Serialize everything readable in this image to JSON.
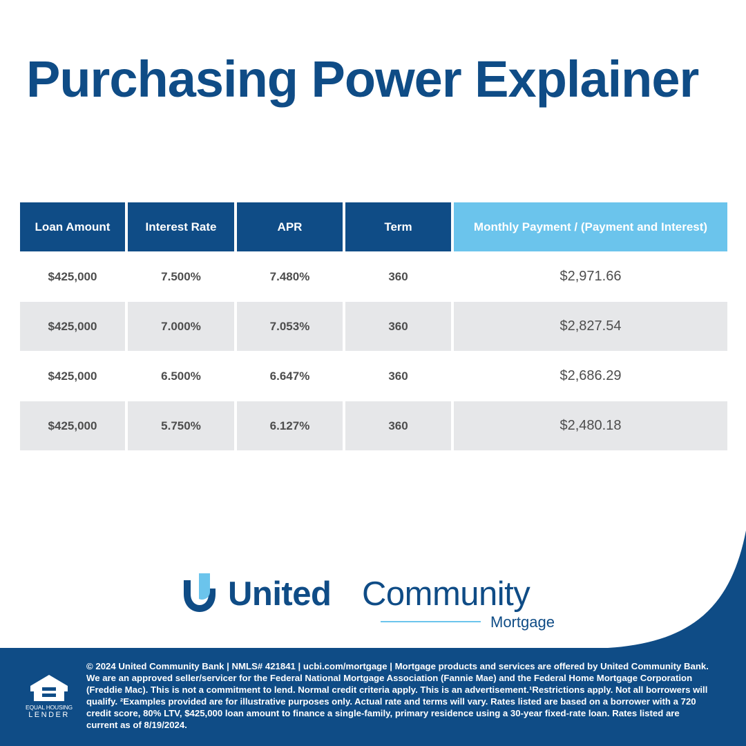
{
  "title": "Purchasing Power Explainer",
  "colors": {
    "brand_blue": "#0f4c86",
    "light_blue": "#6bc4ec",
    "row_gray": "#e6e7e9"
  },
  "table": {
    "headers": [
      "Loan Amount",
      "Interest Rate",
      "APR",
      "Term",
      "Monthly Payment / (Payment and Interest)"
    ],
    "rows": [
      [
        "$425,000",
        "7.500%",
        "7.480%",
        "360",
        "$2,971.66"
      ],
      [
        "$425,000",
        "7.000%",
        "7.053%",
        "360",
        "$2,827.54"
      ],
      [
        "$425,000",
        "6.500%",
        "6.647%",
        "360",
        "$2,686.29"
      ],
      [
        "$425,000",
        "5.750%",
        "6.127%",
        "360",
        "$2,480.18"
      ]
    ]
  },
  "brand": {
    "name_bold": "United",
    "name_regular": "Community",
    "sub": "Mortgage",
    "icon": "united-community-u-icon"
  },
  "equal_housing": {
    "icon": "equal-housing-house-icon",
    "line1": "EQUAL HOUSING",
    "line2": "LENDER"
  },
  "disclaimer": "© 2024 United Community Bank | NMLS# 421841 | ucbi.com/mortgage | Mortgage products and services are offered by United Community Bank. We are an approved seller/servicer for the Federal National Mortgage Association (Fannie Mae) and the Federal Home Mortgage Corporation (Freddie Mac). This is not a commitment to lend. Normal credit criteria apply. This is an advertisement.¹Restrictions apply. Not all borrowers will qualify. ²Examples provided are for illustrative purposes only. Actual rate and terms will vary. Rates listed are based on a borrower with a 720 credit score, 80% LTV, $425,000 loan amount to finance a single-family, primary residence using a 30-year fixed-rate loan. Rates listed are current as of 8/19/2024."
}
